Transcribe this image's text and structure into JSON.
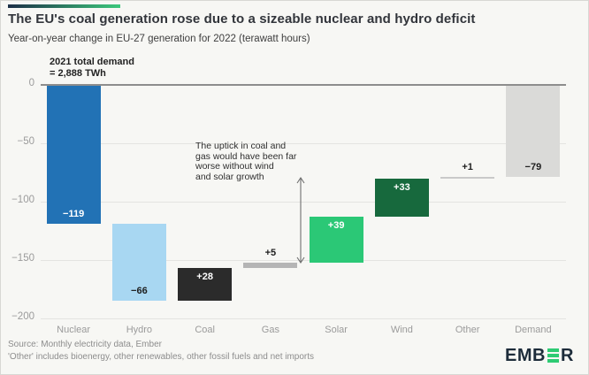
{
  "header": {
    "title": "The EU's coal generation rose due to a sizeable nuclear and hydro deficit",
    "subtitle": "Year-on-year change in EU-27 generation for 2022 (terawatt hours)"
  },
  "annotations": {
    "demand_note": "2021 total demand\n= 2,888 TWh",
    "uptick_note": "The uptick in coal and\ngas would have been far\nworse without wind\nand solar growth"
  },
  "footer": {
    "source": "Source: Monthly electricity data, Ember",
    "note": "'Other' includes bioenergy, other renewables, other fossil fuels and net imports",
    "logo_pre": "EMB",
    "logo_post": "R"
  },
  "chart_data": {
    "type": "bar",
    "subtype": "waterfall",
    "title": "Year-on-year change in EU-27 generation for 2022 (terawatt hours)",
    "units": "terawatt hours (TWh)",
    "categories": [
      "Nuclear",
      "Hydro",
      "Coal",
      "Gas",
      "Solar",
      "Wind",
      "Other",
      "Demand"
    ],
    "values": [
      -119,
      -66,
      28,
      5,
      39,
      33,
      1,
      -79
    ],
    "value_labels": [
      "−119",
      "−66",
      "+28",
      "+5",
      "+39",
      "+33",
      "+1",
      "−79"
    ],
    "is_total": [
      false,
      false,
      false,
      false,
      false,
      false,
      false,
      true
    ],
    "bar_colors": [
      "#2272b5",
      "#a8d7f2",
      "#2b2b2b",
      "#b5b5b5",
      "#2bc876",
      "#17693d",
      "#c9c9c9",
      "#dadad8"
    ],
    "label_colors": [
      "#ffffff",
      "#1e1e1e",
      "#ffffff",
      "#1e1e1e",
      "#ffffff",
      "#ffffff",
      "#1e1e1e",
      "#1e1e1e"
    ],
    "label_positions": [
      "inside-bottom",
      "inside-bottom",
      "inside-top",
      "above",
      "inside-top",
      "inside-top",
      "above",
      "inside-bottom"
    ],
    "ylim": [
      -200,
      0
    ],
    "yticks": [
      0,
      -50,
      -100,
      -150,
      -200
    ],
    "ytick_labels": [
      "0",
      "−50",
      "−100",
      "−150",
      "−200"
    ],
    "grid": true,
    "legend": "none",
    "annotation_arrow": {
      "meaning": "wind + solar growth offset",
      "from_value": -80,
      "to_value": -152
    }
  }
}
